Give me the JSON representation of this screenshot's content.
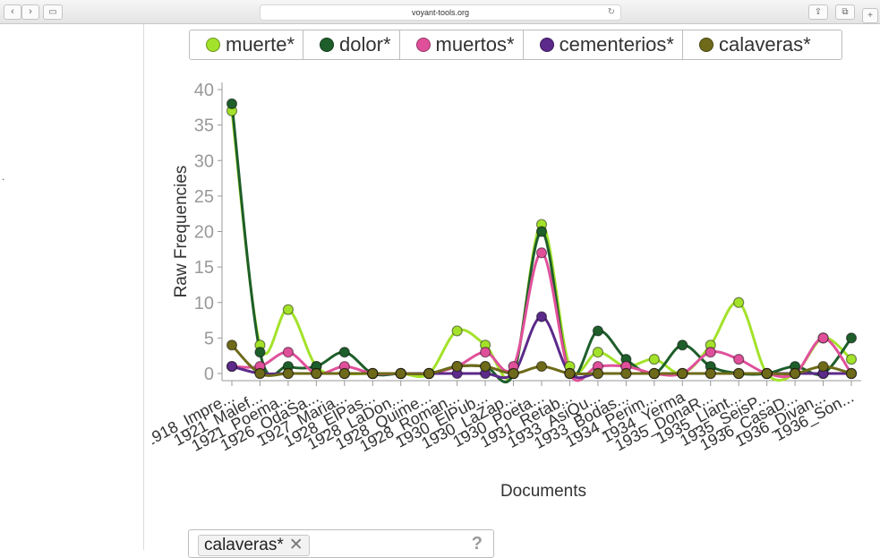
{
  "browser": {
    "url": "voyant-tools.org",
    "back_glyph": "‹",
    "forward_glyph": "›",
    "sidebar_glyph": "▭",
    "reload_glyph": "↻",
    "share_glyph": "⇪",
    "tabs_glyph": "⧉",
    "new_tab_glyph": "+"
  },
  "left_panel": {
    "marker": "."
  },
  "colors": {
    "muerte": "#a3e22a",
    "dolor": "#1e5e2a",
    "muertos": "#e0509a",
    "cementerios": "#5c2a8a",
    "calaveras": "#6e6a1a"
  },
  "chart_data": {
    "type": "line",
    "title": "",
    "xlabel": "Documents",
    "ylabel": "Raw Frequencies",
    "ylim": [
      0,
      40
    ],
    "yticks": [
      0,
      5,
      10,
      15,
      20,
      25,
      30,
      35,
      40
    ],
    "categories": [
      "1918_Impre...",
      "1921_Malef...",
      "1921_Poema...",
      "1926_OdaSa...",
      "1927_Maria...",
      "1928_ElPas...",
      "1928_LaDon...",
      "1928_Quime...",
      "1928_Roman...",
      "1930_ElPub...",
      "1930_LaZap...",
      "1930_Poeta...",
      "1931_Retab...",
      "1933_AsiQu...",
      "1933_Bodas...",
      "1934_Perim...",
      "1934_Yerma",
      "1935_DonaR...",
      "1935_Llant...",
      "1935_SeisP...",
      "1936_CasaD...",
      "1936_Divan...",
      "1936_Son..."
    ],
    "series": [
      {
        "name": "muerte*",
        "color": "#a3e22a",
        "values": [
          37,
          4,
          9,
          1,
          0,
          0,
          0,
          0,
          6,
          4,
          0,
          21,
          1,
          3,
          1,
          2,
          0,
          4,
          10,
          0,
          0,
          5,
          2
        ]
      },
      {
        "name": "dolor*",
        "color": "#1e5e2a",
        "values": [
          38,
          3,
          1,
          1,
          3,
          0,
          0,
          0,
          1,
          1,
          0,
          20,
          0,
          6,
          2,
          0,
          4,
          1,
          0,
          0,
          1,
          0,
          5
        ]
      },
      {
        "name": "muertos*",
        "color": "#e0509a",
        "values": [
          1,
          1,
          3,
          0,
          1,
          0,
          0,
          0,
          1,
          3,
          1,
          17,
          0,
          1,
          1,
          0,
          0,
          3,
          2,
          0,
          0,
          5,
          0
        ]
      },
      {
        "name": "cementerios*",
        "color": "#5c2a8a",
        "values": [
          1,
          0,
          0,
          0,
          0,
          0,
          0,
          0,
          0,
          0,
          0,
          8,
          0,
          0,
          0,
          0,
          0,
          0,
          0,
          0,
          0,
          0,
          0
        ]
      },
      {
        "name": "calaveras*",
        "color": "#6e6a1a",
        "values": [
          4,
          0,
          0,
          0,
          0,
          0,
          0,
          0,
          1,
          1,
          0,
          1,
          0,
          0,
          0,
          0,
          0,
          0,
          0,
          0,
          0,
          1,
          0
        ]
      }
    ]
  },
  "legend": [
    {
      "label": "muerte*",
      "color": "#a3e22a"
    },
    {
      "label": "dolor*",
      "color": "#1e5e2a"
    },
    {
      "label": "muertos*",
      "color": "#e0509a"
    },
    {
      "label": "cementerios*",
      "color": "#5c2a8a"
    },
    {
      "label": "calaveras*",
      "color": "#6e6a1a"
    }
  ],
  "term_filter": {
    "tag_label": "calaveras*",
    "remove_glyph": "✕",
    "help_glyph": "?"
  }
}
